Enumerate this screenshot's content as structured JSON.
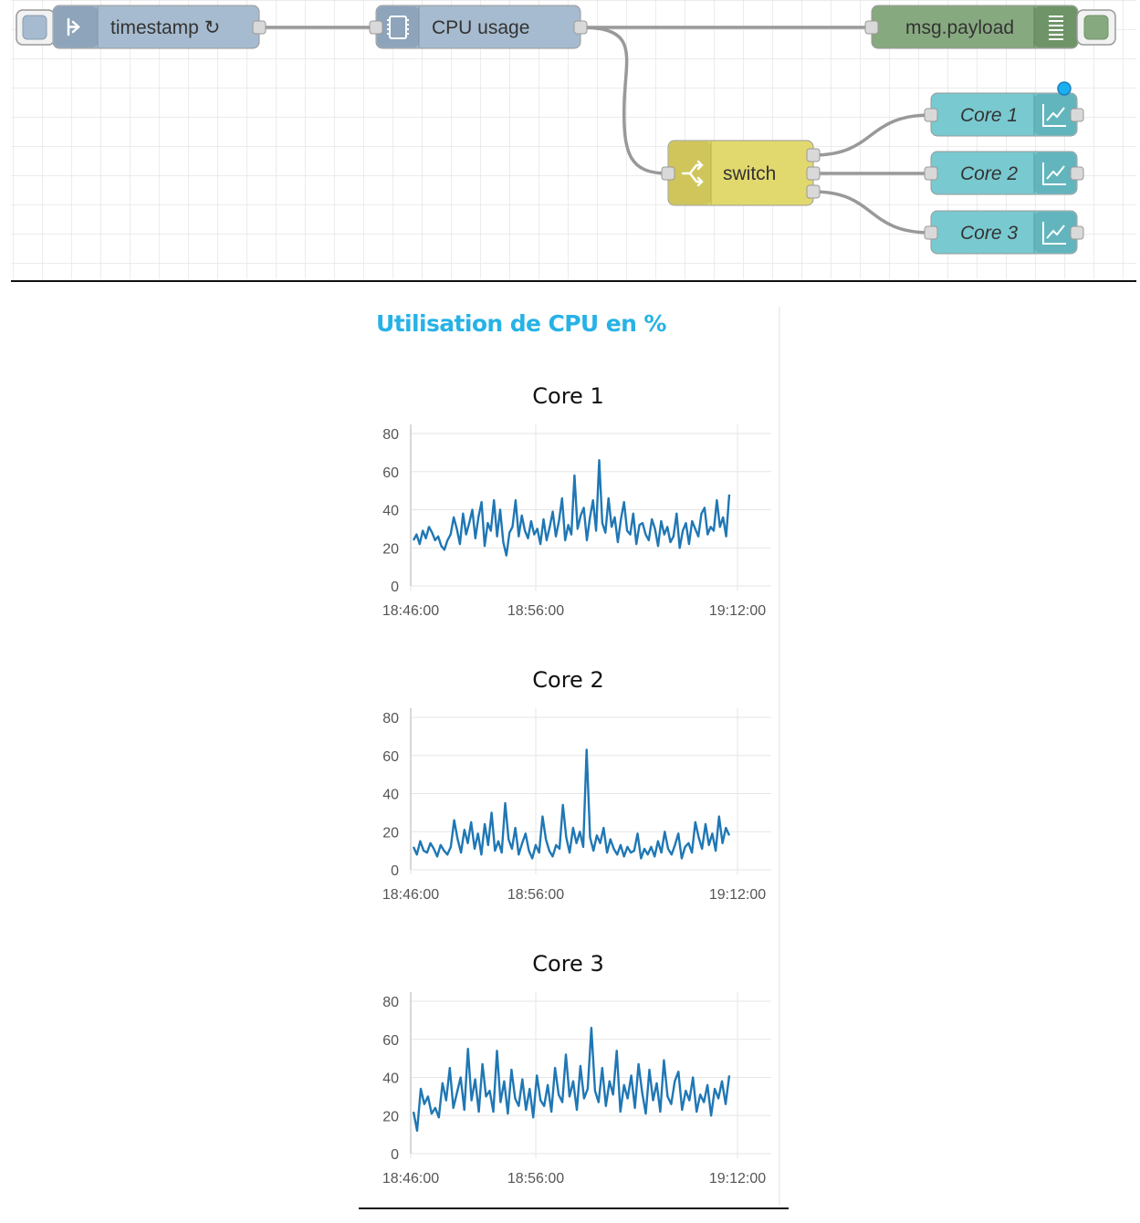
{
  "flow": {
    "nodes": {
      "inject": {
        "label": "timestamp ↻",
        "icon": "arrow-in-icon"
      },
      "cpu": {
        "label": "CPU usage",
        "icon": "chip-icon"
      },
      "debug": {
        "label": "msg.payload",
        "icon": "list-icon"
      },
      "switch": {
        "label": "switch",
        "icon": "switch-icon"
      },
      "core1": {
        "label": "Core 1",
        "icon": "chart-icon"
      },
      "core2": {
        "label": "Core 2",
        "icon": "chart-icon"
      },
      "core3": {
        "label": "Core 3",
        "icon": "chart-icon"
      }
    },
    "colors": {
      "inject": "#a6bbcf",
      "cpu": "#a6bbcf",
      "debug": "#87a980",
      "switch": "#e2d96e",
      "chart": "#79c9d0",
      "status_dot": "#1ab0f0"
    }
  },
  "dashboard": {
    "title": "Utilisation de CPU en %"
  },
  "chart_data": [
    {
      "type": "line",
      "title": "Core 1",
      "ylim": [
        0,
        80
      ],
      "yticks": [
        "0",
        "20",
        "40",
        "60",
        "80"
      ],
      "xticks": [
        "18:46:00",
        "18:56:00",
        "19:12:00"
      ],
      "series": [
        {
          "color": "#1f77b4",
          "values": [
            24,
            27,
            22,
            29,
            25,
            31,
            28,
            24,
            26,
            21,
            19,
            24,
            27,
            36,
            30,
            22,
            38,
            27,
            33,
            40,
            25,
            36,
            44,
            21,
            33,
            29,
            45,
            26,
            40,
            23,
            16,
            28,
            31,
            45,
            26,
            37,
            29,
            25,
            34,
            27,
            30,
            22,
            35,
            24,
            31,
            39,
            26,
            34,
            46,
            24,
            32,
            27,
            58,
            30,
            37,
            41,
            24,
            36,
            45,
            29,
            66,
            33,
            28,
            46,
            31,
            36,
            23,
            35,
            44,
            29,
            27,
            38,
            22,
            32,
            33,
            27,
            24,
            35,
            30,
            21,
            34,
            27,
            31,
            23,
            26,
            38,
            20,
            29,
            33,
            22,
            34,
            30,
            26,
            38,
            41,
            27,
            31,
            29,
            45,
            31,
            36,
            26,
            48
          ]
        }
      ]
    },
    {
      "type": "line",
      "title": "Core 2",
      "ylim": [
        0,
        80
      ],
      "yticks": [
        "0",
        "20",
        "40",
        "60",
        "80"
      ],
      "xticks": [
        "18:46:00",
        "18:56:00",
        "19:12:00"
      ],
      "series": [
        {
          "color": "#1f77b4",
          "values": [
            12,
            8,
            15,
            10,
            9,
            14,
            11,
            7,
            13,
            10,
            8,
            12,
            26,
            16,
            9,
            21,
            14,
            25,
            11,
            19,
            8,
            24,
            13,
            30,
            10,
            15,
            9,
            35,
            16,
            11,
            22,
            8,
            14,
            19,
            10,
            6,
            13,
            9,
            28,
            16,
            10,
            7,
            13,
            11,
            34,
            17,
            9,
            22,
            14,
            20,
            12,
            63,
            17,
            10,
            18,
            14,
            22,
            9,
            16,
            11,
            8,
            13,
            7,
            12,
            9,
            10,
            19,
            6,
            11,
            8,
            12,
            7,
            15,
            9,
            20,
            11,
            8,
            13,
            19,
            6,
            12,
            14,
            9,
            25,
            17,
            11,
            24,
            13,
            19,
            10,
            28,
            14,
            22,
            18
          ]
        }
      ]
    },
    {
      "type": "line",
      "title": "Core 3",
      "ylim": [
        0,
        80
      ],
      "yticks": [
        "0",
        "20",
        "40",
        "60",
        "80"
      ],
      "xticks": [
        "18:46:00",
        "18:56:00",
        "19:12:00"
      ],
      "series": [
        {
          "color": "#1f77b4",
          "values": [
            22,
            12,
            34,
            26,
            30,
            21,
            24,
            19,
            37,
            28,
            45,
            24,
            32,
            40,
            23,
            55,
            28,
            39,
            22,
            47,
            30,
            33,
            22,
            54,
            27,
            38,
            21,
            44,
            29,
            25,
            39,
            23,
            34,
            19,
            41,
            28,
            25,
            36,
            22,
            45,
            31,
            27,
            52,
            30,
            38,
            23,
            46,
            29,
            34,
            66,
            33,
            27,
            45,
            25,
            38,
            31,
            54,
            22,
            36,
            29,
            41,
            24,
            47,
            32,
            21,
            44,
            28,
            37,
            22,
            49,
            30,
            26,
            38,
            43,
            23,
            33,
            28,
            40,
            22,
            31,
            27,
            36,
            20,
            34,
            29,
            38,
            26,
            41
          ]
        }
      ]
    }
  ]
}
